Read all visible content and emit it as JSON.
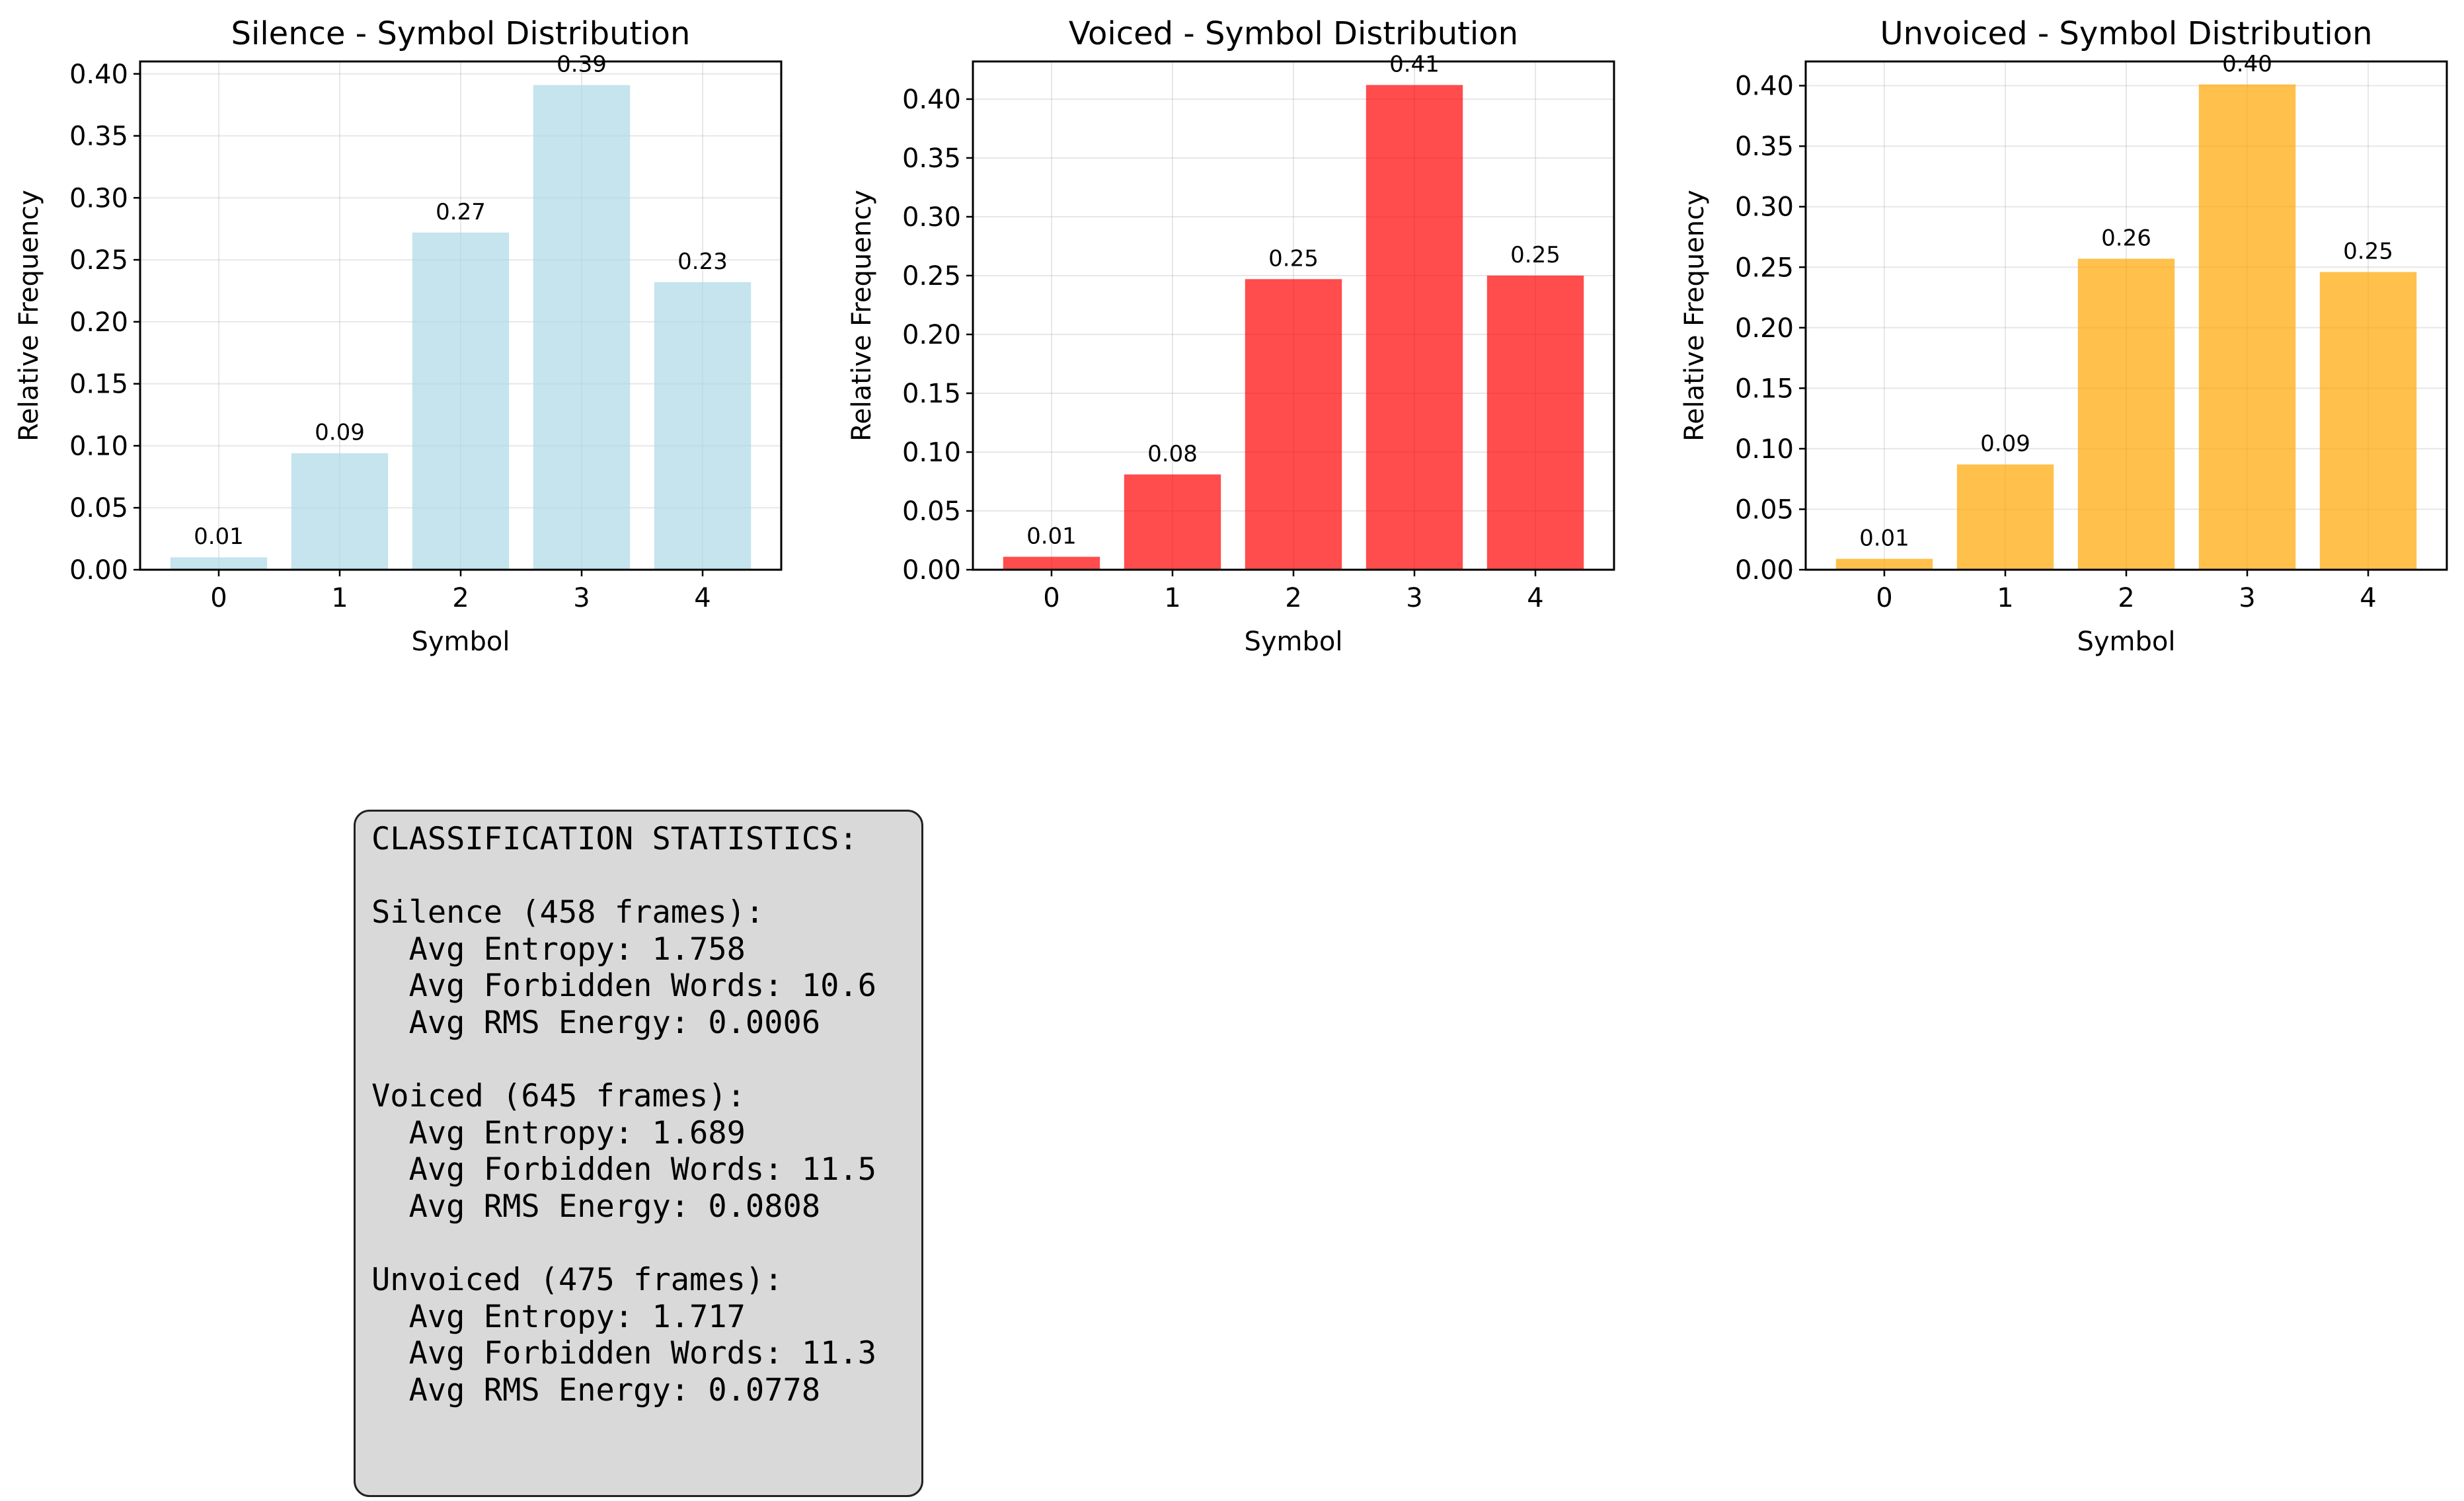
{
  "charts": [
    {
      "title": "Silence - Symbol Distribution",
      "xlabel": "Symbol",
      "ylabel": "Relative Frequency",
      "color": "#add8e6",
      "bar_opacity": 0.7,
      "ylim": [
        0,
        0.41
      ],
      "yticks": [
        "0.00",
        "0.05",
        "0.10",
        "0.15",
        "0.20",
        "0.25",
        "0.30",
        "0.35",
        "0.40"
      ]
    },
    {
      "title": "Voiced - Symbol Distribution",
      "xlabel": "Symbol",
      "ylabel": "Relative Frequency",
      "color": "#ff0000",
      "bar_opacity": 0.7,
      "ylim": [
        0,
        0.432
      ],
      "yticks": [
        "0.00",
        "0.05",
        "0.10",
        "0.15",
        "0.20",
        "0.25",
        "0.30",
        "0.35",
        "0.40"
      ]
    },
    {
      "title": "Unvoiced - Symbol Distribution",
      "xlabel": "Symbol",
      "ylabel": "Relative Frequency",
      "color": "#ffa500",
      "bar_opacity": 0.7,
      "ylim": [
        0,
        0.42
      ],
      "yticks": [
        "0.00",
        "0.05",
        "0.10",
        "0.15",
        "0.20",
        "0.25",
        "0.30",
        "0.35",
        "0.40"
      ]
    }
  ],
  "chart_data": [
    {
      "type": "bar",
      "title": "Silence - Symbol Distribution",
      "xlabel": "Symbol",
      "ylabel": "Relative Frequency",
      "categories": [
        "0",
        "1",
        "2",
        "3",
        "4"
      ],
      "values": [
        0.01,
        0.094,
        0.272,
        0.391,
        0.232
      ],
      "labels": [
        "0.01",
        "0.09",
        "0.27",
        "0.39",
        "0.23"
      ],
      "ylim": [
        0,
        0.41
      ],
      "grid": true
    },
    {
      "type": "bar",
      "title": "Voiced - Symbol Distribution",
      "xlabel": "Symbol",
      "ylabel": "Relative Frequency",
      "categories": [
        "0",
        "1",
        "2",
        "3",
        "4"
      ],
      "values": [
        0.011,
        0.081,
        0.247,
        0.412,
        0.25
      ],
      "labels": [
        "0.01",
        "0.08",
        "0.25",
        "0.41",
        "0.25"
      ],
      "ylim": [
        0,
        0.432
      ],
      "grid": true
    },
    {
      "type": "bar",
      "title": "Unvoiced - Symbol Distribution",
      "xlabel": "Symbol",
      "ylabel": "Relative Frequency",
      "categories": [
        "0",
        "1",
        "2",
        "3",
        "4"
      ],
      "values": [
        0.009,
        0.087,
        0.257,
        0.401,
        0.246
      ],
      "labels": [
        "0.01",
        "0.09",
        "0.26",
        "0.40",
        "0.25"
      ],
      "ylim": [
        0,
        0.42
      ],
      "grid": true
    }
  ],
  "stats": {
    "lines": [
      "CLASSIFICATION STATISTICS:",
      "",
      "Silence (458 frames):",
      "  Avg Entropy: 1.758",
      "  Avg Forbidden Words: 10.6",
      "  Avg RMS Energy: 0.0006",
      "",
      "Voiced (645 frames):",
      "  Avg Entropy: 1.689",
      "  Avg Forbidden Words: 11.5",
      "  Avg RMS Energy: 0.0808",
      "",
      "Unvoiced (475 frames):",
      "  Avg Entropy: 1.717",
      "  Avg Forbidden Words: 11.3",
      "  Avg RMS Energy: 0.0778"
    ]
  }
}
